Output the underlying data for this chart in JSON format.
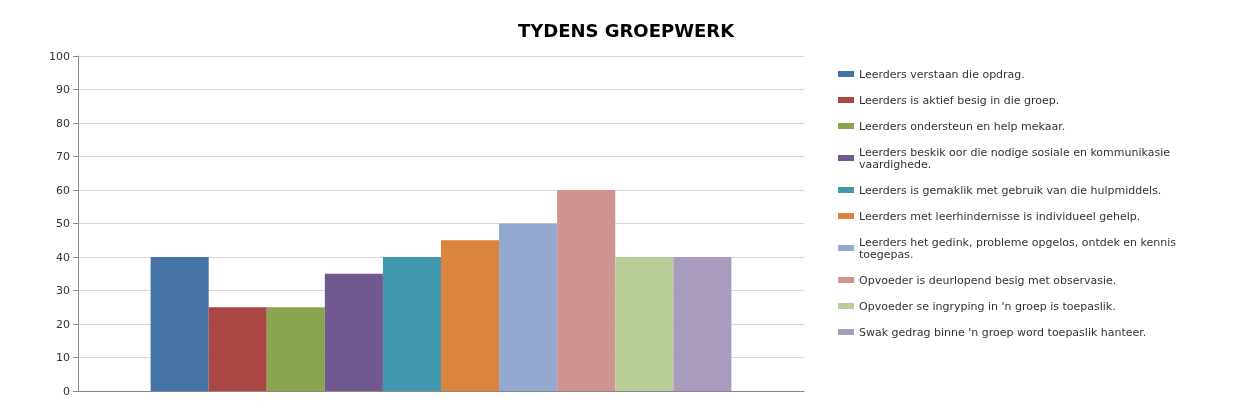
{
  "chart_data": {
    "type": "bar",
    "title": "TYDENS GROEPWERK",
    "categories": [
      null
    ],
    "series": [
      {
        "name": "Leerders verstaan die opdrag.",
        "color": "#4572a7",
        "values": [
          40
        ]
      },
      {
        "name": "Leerders is aktief besig in die groep.",
        "color": "#aa4643",
        "values": [
          25
        ]
      },
      {
        "name": "Leerders ondersteun en help mekaar.",
        "color": "#89a54e",
        "values": [
          25
        ]
      },
      {
        "name": "Leerders beskik oor die nodige sosiale en kommunikasie vaardighede.",
        "color": "#71588f",
        "values": [
          35
        ]
      },
      {
        "name": "Leerders is gemaklik met gebruik van die hulpmiddels.",
        "color": "#4198af",
        "values": [
          40
        ]
      },
      {
        "name": "Leerders met leerhindernisse is individueel gehelp.",
        "color": "#db843d",
        "values": [
          45
        ]
      },
      {
        "name": "Leerders het gedink, probleme opgelos, ontdek en kennis toegepas.",
        "color": "#93a9cf",
        "values": [
          50
        ]
      },
      {
        "name": "Opvoeder is deurlopend besig met observasie.",
        "color": "#d19392",
        "values": [
          60
        ]
      },
      {
        "name": "Opvoeder se ingryping in 'n groep is toepaslik.",
        "color": "#b9cd96",
        "values": [
          40
        ]
      },
      {
        "name": "Swak gedrag binne 'n groep word toepaslik hanteer.",
        "color": "#a99bbd",
        "values": [
          40
        ]
      }
    ],
    "ylim": [
      0,
      100
    ],
    "yticks": [
      0,
      10,
      20,
      30,
      40,
      50,
      60,
      70,
      80,
      90,
      100
    ],
    "grid": "y",
    "legend": "right"
  }
}
